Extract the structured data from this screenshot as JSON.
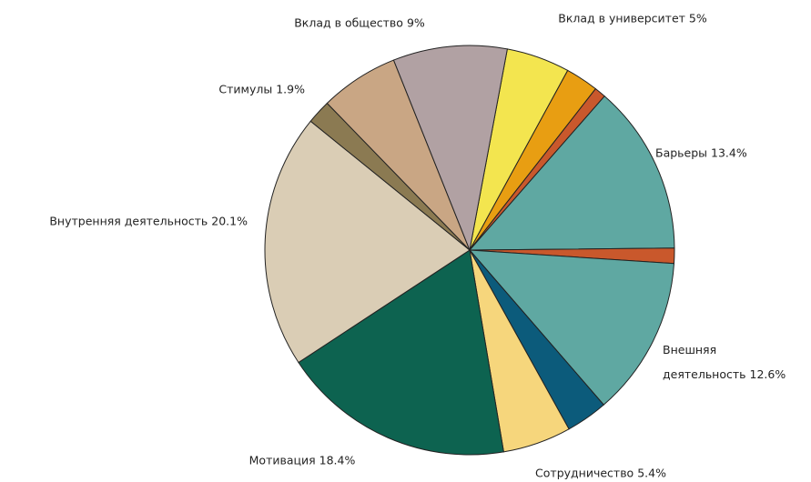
{
  "chart_data": {
    "type": "pie",
    "categories": [
      "Вклад в университет",
      null,
      null,
      "Барьеры",
      null,
      "Внешняя деятельность",
      null,
      "Сотрудничество",
      "Мотивация",
      "Внутренняя деятельность",
      "Стимулы",
      null,
      "Вклад в общество"
    ],
    "values": [
      5,
      2.6,
      0.9,
      13.4,
      1.2,
      12.6,
      3.3,
      5.4,
      18.4,
      20.1,
      1.9,
      6.2,
      9
    ],
    "value_labels": [
      "5%",
      null,
      null,
      "13.4%",
      null,
      "12.6%",
      null,
      "5.4%",
      "18.4%",
      "20.1%",
      "1.9%",
      null,
      "9%"
    ],
    "colors": [
      "#f3e54f",
      "#e89e12",
      "#c9582c",
      "#5fa8a2",
      "#c9582c",
      "#5fa8a2",
      "#0c5b7b",
      "#f6d67c",
      "#0d6350",
      "#dacdb5",
      "#8b7a52",
      "#c9a684",
      "#b1a1a3"
    ]
  }
}
